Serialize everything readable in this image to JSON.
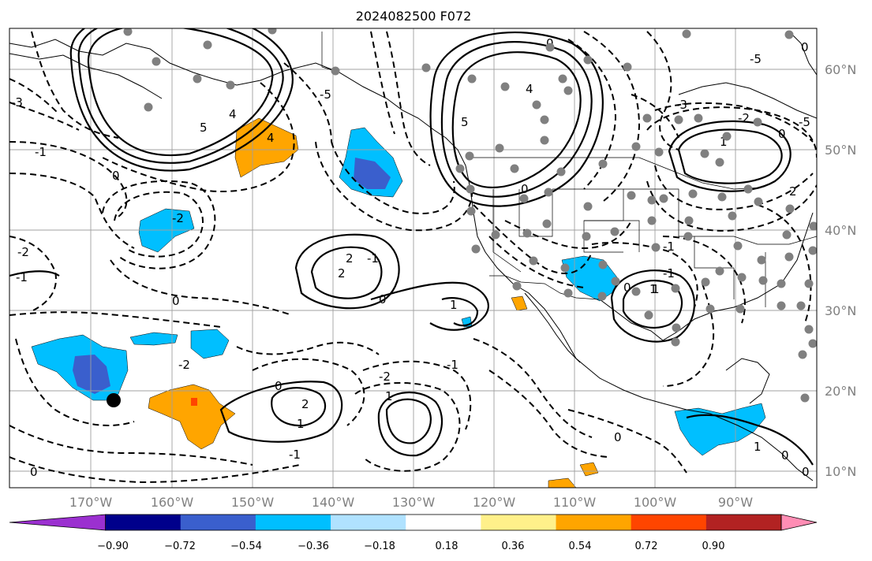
{
  "title": "2024082500 F072",
  "latitude_labels": [
    "60°N",
    "50°N",
    "40°N",
    "30°N",
    "20°N",
    "10°N"
  ],
  "longitude_labels": [
    "170°W",
    "160°W",
    "150°W",
    "140°W",
    "130°W",
    "120°W",
    "110°W",
    "100°W",
    "90°W"
  ],
  "colorbar": {
    "tick_labels": [
      "−0.90",
      "−0.72",
      "−0.54",
      "−0.36",
      "−0.18",
      "0.18",
      "0.36",
      "0.54",
      "0.72",
      "0.90"
    ],
    "colors": [
      "#9b30d0",
      "#00008b",
      "#3a5fcd",
      "#00bfff",
      "#b0e2ff",
      "#ffffff",
      "#fff08a",
      "#ffa500",
      "#ff4500",
      "#b22222",
      "#ff8db4"
    ]
  },
  "colors": {
    "negative_strong": "#3a5fcd",
    "negative": "#00bfff",
    "positive": "#ffa500",
    "positive_strong": "#ff4500",
    "station": "#808080",
    "marker": "#000000"
  },
  "contour_labels": [
    "-1",
    "0",
    "4",
    "5",
    "4",
    "-5",
    "-2",
    "-2",
    "0",
    "2",
    "2",
    "-1",
    "0",
    "1",
    "1",
    "4",
    "5",
    "-5",
    "0",
    "0",
    "-1",
    "0",
    "1",
    "-3",
    "-2",
    "0",
    "-2",
    "0",
    "-5",
    "-1",
    "2",
    "-1",
    "-2",
    "1",
    "0",
    "-1",
    "-1",
    "2",
    "1",
    "0",
    "0",
    "1",
    "1",
    "0",
    "-3",
    "0"
  ]
}
